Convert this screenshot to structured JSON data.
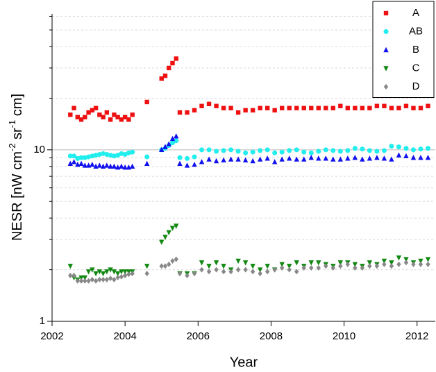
{
  "chart_data": {
    "type": "scatter",
    "x_label": "Year",
    "y_label": [
      "NESR [nW cm",
      "-2",
      " sr",
      "-1",
      " cm]"
    ],
    "xlim": [
      2002,
      2012.5
    ],
    "xticks": [
      2002,
      2004,
      2006,
      2008,
      2010,
      2012
    ],
    "ylim": [
      1,
      62
    ],
    "yticks": [
      1,
      10
    ],
    "minor_yticks": [
      2,
      3,
      4,
      5,
      6,
      7,
      8,
      9,
      20,
      30,
      40,
      50,
      60
    ],
    "log_y": true,
    "grid": true,
    "legend": "top-right",
    "x": [
      2002.5,
      2002.6,
      2002.7,
      2002.8,
      2002.9,
      2003.0,
      2003.1,
      2003.2,
      2003.3,
      2003.4,
      2003.5,
      2003.6,
      2003.7,
      2003.8,
      2003.9,
      2004.0,
      2004.1,
      2004.2,
      2004.6,
      2005.0,
      2005.1,
      2005.2,
      2005.3,
      2005.4,
      2005.5,
      2005.7,
      2005.9,
      2006.1,
      2006.3,
      2006.5,
      2006.7,
      2006.9,
      2007.1,
      2007.3,
      2007.5,
      2007.7,
      2007.9,
      2008.1,
      2008.3,
      2008.5,
      2008.7,
      2008.9,
      2009.1,
      2009.3,
      2009.5,
      2009.7,
      2009.9,
      2010.1,
      2010.3,
      2010.5,
      2010.7,
      2010.9,
      2011.1,
      2011.3,
      2011.5,
      2011.7,
      2011.9,
      2012.1,
      2012.3
    ],
    "series": [
      {
        "name": "A",
        "color": "#ee1111",
        "marker": "square",
        "values": [
          16,
          17.5,
          15.5,
          15,
          15.5,
          16.5,
          17,
          17.5,
          16,
          15.5,
          16.5,
          15,
          16,
          15.5,
          15,
          15.5,
          15,
          16,
          19,
          26,
          27,
          30,
          32,
          34,
          16.5,
          16.5,
          17,
          18,
          18.5,
          18,
          17.5,
          17.5,
          16.5,
          17,
          17,
          17.5,
          17.5,
          17,
          17.5,
          17.5,
          17.5,
          17.5,
          17.5,
          17.5,
          17.5,
          17.5,
          18,
          17.5,
          17.5,
          17.5,
          17.5,
          18,
          18,
          17.5,
          17.5,
          18,
          17.5,
          17.5,
          18
        ]
      },
      {
        "name": "AB",
        "color": "#22eeee",
        "marker": "circle",
        "values": [
          9.2,
          9.2,
          8.9,
          9,
          9,
          9.1,
          9.2,
          9.3,
          9.4,
          9.5,
          9.4,
          9.3,
          9.2,
          9.3,
          9.5,
          9.4,
          9.6,
          9.7,
          9.1,
          10,
          10.2,
          10.6,
          11,
          11.3,
          9,
          8.9,
          9.1,
          10,
          10,
          9.8,
          9.9,
          10,
          9.8,
          9.6,
          9.7,
          9.9,
          10,
          9.6,
          9.7,
          9.9,
          10,
          9.7,
          9.6,
          9.8,
          10,
          9.9,
          9.8,
          9.9,
          10.2,
          10.1,
          9.9,
          9.8,
          9.9,
          10.5,
          10.4,
          10.2,
          10,
          10.1,
          10.2
        ]
      },
      {
        "name": "B",
        "color": "#1111ee",
        "marker": "triangle-up",
        "values": [
          8.3,
          8.5,
          8.2,
          8.3,
          8.1,
          8.1,
          8.2,
          8.0,
          8.1,
          8.0,
          8.1,
          8.0,
          8.0,
          7.9,
          8.0,
          7.9,
          7.9,
          8.0,
          8.3,
          10,
          10.4,
          10.8,
          11.6,
          12,
          8.3,
          8.1,
          8.2,
          8.5,
          8.8,
          8.6,
          8.7,
          8.8,
          8.8,
          8.7,
          8.6,
          8.8,
          8.9,
          8.5,
          8.8,
          8.9,
          8.8,
          8.8,
          9.0,
          8.9,
          8.9,
          8.8,
          8.8,
          8.9,
          9.0,
          8.8,
          8.9,
          9.0,
          8.9,
          8.8,
          9.3,
          9.2,
          9.0,
          9.0,
          9.0
        ]
      },
      {
        "name": "C",
        "color": "#118811",
        "marker": "triangle-down",
        "values": [
          2.1,
          1.8,
          1.75,
          1.8,
          1.8,
          1.95,
          2.0,
          1.9,
          1.95,
          1.9,
          1.95,
          2.0,
          1.95,
          1.9,
          1.95,
          1.95,
          1.95,
          1.95,
          2.1,
          2.9,
          3.1,
          3.3,
          3.5,
          3.6,
          1.9,
          1.9,
          1.9,
          2.2,
          2.1,
          2.2,
          2.1,
          2.0,
          2.25,
          2.2,
          2.1,
          2.0,
          2.1,
          2.0,
          2.15,
          2.1,
          2.2,
          2.1,
          2.2,
          2.2,
          2.15,
          2.1,
          2.2,
          2.2,
          2.15,
          2.1,
          2.2,
          2.15,
          2.25,
          2.2,
          2.35,
          2.3,
          2.2,
          2.25,
          2.3
        ]
      },
      {
        "name": "D",
        "color": "#888888",
        "marker": "diamond",
        "values": [
          1.85,
          1.85,
          1.72,
          1.72,
          1.72,
          1.72,
          1.75,
          1.72,
          1.75,
          1.75,
          1.75,
          1.78,
          1.75,
          1.8,
          1.82,
          1.85,
          1.88,
          1.9,
          1.9,
          2.1,
          2.1,
          2.15,
          2.25,
          2.3,
          1.9,
          1.85,
          1.9,
          2.0,
          1.95,
          2.0,
          1.95,
          1.95,
          2.0,
          2.0,
          1.95,
          1.9,
          1.95,
          2.0,
          2.05,
          2.0,
          1.95,
          2.05,
          2.05,
          2.05,
          2.1,
          2.05,
          2.1,
          2.15,
          2.05,
          2.05,
          2.1,
          2.1,
          2.15,
          2.1,
          2.15,
          2.2,
          2.15,
          2.15,
          2.15
        ]
      }
    ]
  }
}
